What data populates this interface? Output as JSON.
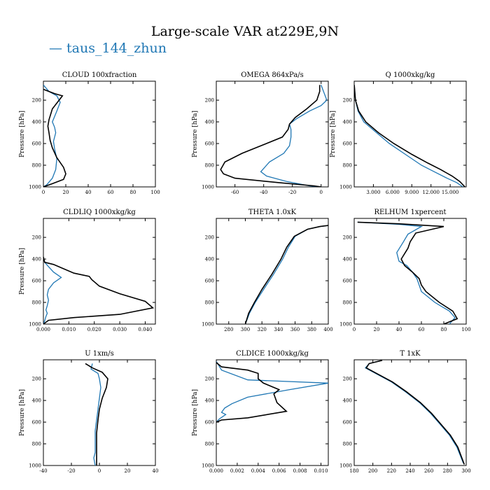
{
  "figure": {
    "title": "Large-scale VAR at229E,9N",
    "legend_label": "taus_144_zhun"
  },
  "colors": {
    "series_a": "#1f77b4",
    "series_b": "#000000"
  },
  "chart_data": [
    {
      "type": "line",
      "title": "CLOUD  100xfraction",
      "ylabel": "Pressure [hPa]",
      "xlim": [
        0,
        100
      ],
      "ylim": [
        1000,
        25
      ],
      "y_inverted": true,
      "xticks": [
        0,
        20,
        40,
        60,
        80,
        100
      ],
      "xticklabels": [
        "0",
        "20",
        "40",
        "60",
        "80",
        "100"
      ],
      "yticks": [
        200,
        400,
        600,
        800,
        1000
      ],
      "yticklabels": [
        "200",
        "400",
        "600",
        "800",
        "1000"
      ],
      "series": [
        {
          "name": "taus_144_zhun",
          "color": "#1f77b4",
          "x": [
            0,
            5,
            12,
            15,
            12,
            8,
            10,
            11,
            9,
            10,
            12,
            11,
            8,
            3,
            0
          ],
          "y": [
            60,
            120,
            160,
            220,
            300,
            400,
            450,
            500,
            580,
            650,
            740,
            840,
            920,
            980,
            1000
          ]
        },
        {
          "name": "",
          "color": "#000000",
          "x": [
            0,
            10,
            17,
            14,
            8,
            5,
            4,
            5,
            6,
            8,
            12,
            18,
            20,
            18,
            8,
            0
          ],
          "y": [
            100,
            140,
            160,
            200,
            280,
            380,
            440,
            500,
            570,
            640,
            730,
            820,
            880,
            930,
            970,
            1000
          ]
        }
      ]
    },
    {
      "type": "line",
      "title": "OMEGA  864xPa/s",
      "ylabel": "Pressure [hPa]",
      "xlim": [
        -73,
        5
      ],
      "ylim": [
        1000,
        25
      ],
      "y_inverted": true,
      "xticks": [
        -60,
        -40,
        -20,
        0
      ],
      "xticklabels": [
        "-60",
        "-40",
        "-20",
        "0"
      ],
      "yticks": [
        200,
        400,
        600,
        800,
        1000
      ],
      "yticklabels": [
        "200",
        "400",
        "600",
        "800",
        "1000"
      ],
      "series": [
        {
          "name": "taus_144_zhun",
          "color": "#1f77b4",
          "x": [
            0,
            2,
            4,
            0,
            -8,
            -17,
            -22,
            -21,
            -21,
            -22,
            -26,
            -36,
            -42,
            -38,
            -24,
            -8,
            0
          ],
          "y": [
            60,
            130,
            200,
            250,
            300,
            370,
            420,
            470,
            540,
            620,
            690,
            770,
            860,
            900,
            950,
            990,
            1000
          ]
        },
        {
          "name": "",
          "color": "#000000",
          "x": [
            -1,
            -1,
            -3,
            -10,
            -18,
            -22,
            -23,
            -27,
            -40,
            -55,
            -67,
            -70,
            -68,
            -60,
            -30,
            -5,
            0
          ],
          "y": [
            60,
            120,
            200,
            280,
            360,
            420,
            470,
            540,
            610,
            690,
            770,
            840,
            880,
            920,
            960,
            990,
            1000
          ]
        }
      ]
    },
    {
      "type": "line",
      "title": "Q  1000xkg/kg",
      "ylabel": "Pressure [hPa]",
      "xlim": [
        0,
        17.5
      ],
      "ylim": [
        1000,
        25
      ],
      "y_inverted": true,
      "xticks": [
        3,
        6,
        9,
        12,
        15
      ],
      "xticklabels": [
        "3.000",
        "6.000",
        "9.000",
        "12.000",
        "15.000"
      ],
      "yticks": [
        200,
        400,
        600,
        800,
        1000
      ],
      "yticklabels": [
        "200",
        "400",
        "600",
        "800",
        "1000"
      ],
      "series": [
        {
          "name": "taus_144_zhun",
          "color": "#1f77b4",
          "x": [
            0.01,
            0.2,
            0.6,
            1.5,
            3.5,
            5.5,
            8.0,
            10.5,
            12.5,
            14.5,
            16.0,
            17.0
          ],
          "y": [
            60,
            200,
            300,
            400,
            500,
            600,
            700,
            800,
            860,
            920,
            960,
            1000
          ]
        },
        {
          "name": "",
          "color": "#000000",
          "x": [
            0.01,
            0.2,
            0.7,
            1.8,
            3.8,
            6.2,
            9.0,
            11.5,
            13.5,
            15.3,
            16.5,
            17.3
          ],
          "y": [
            60,
            200,
            300,
            400,
            500,
            600,
            700,
            780,
            840,
            900,
            950,
            1000
          ]
        }
      ]
    },
    {
      "type": "line",
      "title": "CLDLIQ  1000xkg/kg",
      "ylabel": "Pressure [hPa]",
      "xlim": [
        0,
        0.044
      ],
      "ylim": [
        1000,
        25
      ],
      "y_inverted": true,
      "xticks": [
        0,
        0.01,
        0.02,
        0.03,
        0.04
      ],
      "xticklabels": [
        "0.000",
        "0.010",
        "0.020",
        "0.030",
        "0.040"
      ],
      "yticks": [
        200,
        400,
        600,
        800,
        1000
      ],
      "yticklabels": [
        "200",
        "400",
        "600",
        "800",
        "1000"
      ],
      "series": [
        {
          "name": "taus_144_zhun",
          "color": "#1f77b4",
          "x": [
            0,
            0.0005,
            0.002,
            0.004,
            0.007,
            0.004,
            0.002,
            0.0015,
            0.002,
            0.0015,
            0.001,
            0.0015,
            0.001,
            0.0005,
            0
          ],
          "y": [
            380,
            430,
            470,
            520,
            570,
            620,
            680,
            730,
            780,
            830,
            870,
            900,
            930,
            970,
            1000
          ]
        },
        {
          "name": "",
          "color": "#000000",
          "x": [
            0,
            0.0005,
            0.004,
            0.012,
            0.018,
            0.019,
            0.022,
            0.03,
            0.04,
            0.043,
            0.03,
            0.012,
            0.002,
            0
          ],
          "y": [
            380,
            430,
            450,
            530,
            560,
            590,
            650,
            720,
            790,
            850,
            910,
            940,
            965,
            1000
          ]
        }
      ]
    },
    {
      "type": "line",
      "title": "THETA  1.0xK",
      "ylabel": "",
      "xlim": [
        265,
        400
      ],
      "ylim": [
        1000,
        25
      ],
      "y_inverted": true,
      "xticks": [
        280,
        300,
        320,
        340,
        360,
        380,
        400
      ],
      "xticklabels": [
        "280",
        "300",
        "320",
        "340",
        "360",
        "380",
        "400"
      ],
      "yticks": [
        200,
        400,
        600,
        800,
        1000
      ],
      "yticklabels": [
        "200",
        "400",
        "600",
        "800",
        "1000"
      ],
      "series": [
        {
          "name": "taus_144_zhun",
          "color": "#1f77b4",
          "x": [
            300,
            305,
            312,
            322,
            334,
            345,
            352,
            360,
            375,
            390,
            400
          ],
          "y": [
            1000,
            900,
            800,
            680,
            540,
            400,
            290,
            190,
            125,
            100,
            90
          ]
        },
        {
          "name": "",
          "color": "#000000",
          "x": [
            300,
            304,
            311,
            320,
            332,
            343,
            350,
            359,
            375,
            390,
            400
          ],
          "y": [
            1000,
            900,
            800,
            680,
            540,
            400,
            290,
            190,
            125,
            100,
            90
          ]
        }
      ]
    },
    {
      "type": "line",
      "title": "RELHUM  1xpercent",
      "ylabel": "",
      "xlim": [
        0,
        100
      ],
      "ylim": [
        1000,
        25
      ],
      "y_inverted": true,
      "xticks": [
        0,
        20,
        40,
        60,
        80,
        100
      ],
      "xticklabels": [
        "0",
        "20",
        "40",
        "60",
        "80",
        "100"
      ],
      "yticks": [
        200,
        400,
        600,
        800,
        1000
      ],
      "yticklabels": [
        "200",
        "400",
        "600",
        "800",
        "1000"
      ],
      "series": [
        {
          "name": "taus_144_zhun",
          "color": "#1f77b4",
          "x": [
            3,
            40,
            60,
            48,
            44,
            38,
            40,
            47,
            52,
            56,
            58,
            60,
            72,
            85,
            90,
            85
          ],
          "y": [
            60,
            80,
            100,
            170,
            240,
            340,
            420,
            460,
            520,
            580,
            640,
            700,
            800,
            880,
            940,
            1000
          ]
        },
        {
          "name": "",
          "color": "#000000",
          "x": [
            3,
            40,
            80,
            55,
            50,
            48,
            42,
            45,
            52,
            58,
            60,
            64,
            76,
            88,
            92,
            80
          ],
          "y": [
            60,
            75,
            100,
            160,
            240,
            300,
            400,
            460,
            520,
            580,
            640,
            700,
            800,
            880,
            950,
            1000
          ]
        }
      ]
    },
    {
      "type": "line",
      "title": "U  1xm/s",
      "ylabel": "Pressure [hPa]",
      "xlim": [
        -40,
        40
      ],
      "ylim": [
        1000,
        25
      ],
      "y_inverted": true,
      "xticks": [
        -40,
        -20,
        0,
        20,
        40
      ],
      "xticklabels": [
        "-40",
        "-20",
        "0",
        "20",
        "40"
      ],
      "yticks": [
        200,
        400,
        600,
        800,
        1000
      ],
      "yticklabels": [
        "200",
        "400",
        "600",
        "800",
        "1000"
      ],
      "series": [
        {
          "name": "taus_144_zhun",
          "color": "#1f77b4",
          "x": [
            -5,
            -6,
            -1,
            0,
            1,
            0,
            -1,
            -2,
            -3,
            -3,
            -3,
            -4,
            -3
          ],
          "y": [
            60,
            110,
            150,
            200,
            280,
            380,
            480,
            580,
            680,
            780,
            880,
            930,
            1000
          ]
        },
        {
          "name": "",
          "color": "#000000",
          "x": [
            -10,
            -5,
            2,
            6,
            5,
            2,
            0,
            -1,
            -2,
            -2,
            -2,
            -2
          ],
          "y": [
            60,
            100,
            140,
            200,
            280,
            380,
            480,
            580,
            700,
            800,
            900,
            1000
          ]
        }
      ]
    },
    {
      "type": "line",
      "title": "CLDICE  1000xkg/kg",
      "ylabel": "Pressure [hPa]",
      "xlim": [
        0,
        0.0107
      ],
      "ylim": [
        1000,
        25
      ],
      "y_inverted": true,
      "xticks": [
        0,
        0.002,
        0.004,
        0.006,
        0.008,
        0.01
      ],
      "xticklabels": [
        "0.000",
        "0.002",
        "0.004",
        "0.006",
        "0.008",
        "0.010"
      ],
      "yticks": [
        200,
        400,
        600,
        800,
        1000
      ],
      "yticklabels": [
        "200",
        "400",
        "600",
        "800",
        "1000"
      ],
      "series": [
        {
          "name": "taus_144_zhun",
          "color": "#1f77b4",
          "x": [
            0,
            0.0005,
            0.003,
            0.0107,
            0.007,
            0.003,
            0.0015,
            0.0008,
            0.0005,
            0.0009,
            0.0003,
            0
          ],
          "y": [
            40,
            120,
            210,
            240,
            300,
            370,
            430,
            470,
            510,
            530,
            570,
            600
          ]
        },
        {
          "name": "",
          "color": "#000000",
          "x": [
            0,
            0.0005,
            0.003,
            0.004,
            0.004,
            0.0045,
            0.006,
            0.0055,
            0.0058,
            0.0067,
            0.003,
            0.0005,
            0
          ],
          "y": [
            50,
            90,
            120,
            150,
            200,
            240,
            300,
            340,
            420,
            500,
            560,
            580,
            600
          ]
        }
      ]
    },
    {
      "type": "line",
      "title": "T  1xK",
      "ylabel": "",
      "xlim": [
        180,
        300
      ],
      "ylim": [
        1000,
        25
      ],
      "y_inverted": true,
      "xticks": [
        180,
        200,
        220,
        240,
        260,
        280,
        300
      ],
      "xticklabels": [
        "180",
        "200",
        "220",
        "240",
        "260",
        "280",
        "300"
      ],
      "yticks": [
        200,
        400,
        600,
        800,
        1000
      ],
      "yticklabels": [
        "200",
        "400",
        "600",
        "800",
        "1000"
      ],
      "series": [
        {
          "name": "taus_144_zhun",
          "color": "#1f77b4",
          "x": [
            210,
            196,
            192,
            205,
            220,
            235,
            250,
            262,
            272,
            282,
            290,
            297
          ],
          "y": [
            30,
            60,
            100,
            160,
            230,
            320,
            420,
            520,
            620,
            720,
            830,
            980
          ]
        },
        {
          "name": "",
          "color": "#000000",
          "x": [
            210,
            196,
            193,
            206,
            221,
            236,
            251,
            263,
            273,
            283,
            291,
            298
          ],
          "y": [
            30,
            60,
            100,
            160,
            230,
            320,
            420,
            520,
            620,
            720,
            830,
            990
          ]
        }
      ]
    }
  ]
}
